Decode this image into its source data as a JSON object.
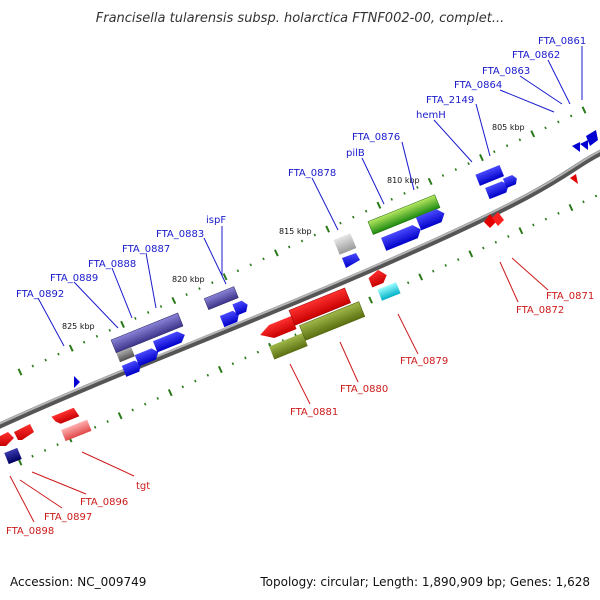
{
  "title": "Francisella tularensis subsp. holarctica FTNF002-00, complet...",
  "footer": {
    "accession": "Accession: NC_009749",
    "summary": "Topology: circular; Length: 1,890,909 bp; Genes: 1,628"
  },
  "scale_labels": [
    "825 kbp",
    "820 kbp",
    "815 kbp",
    "810 kbp",
    "805 kbp"
  ],
  "colors": {
    "forward_label": "#1a1acc",
    "reverse_label": "#cc1a1a",
    "backbone": "#808080",
    "tick": "#2a7a1a"
  },
  "genes_forward": [
    "FTA_0892",
    "FTA_0889",
    "FTA_0888",
    "FTA_0887",
    "FTA_0883",
    "ispF",
    "FTA_0878",
    "pilB",
    "FTA_0876",
    "hemH",
    "FTA_2149",
    "FTA_0864",
    "FTA_0863",
    "FTA_0862",
    "FTA_0861"
  ],
  "genes_reverse": [
    "FTA_0898",
    "FTA_0897",
    "FTA_0896",
    "tgt",
    "FTA_0881",
    "FTA_0880",
    "FTA_0879",
    "FTA_0872",
    "FTA_0871"
  ]
}
